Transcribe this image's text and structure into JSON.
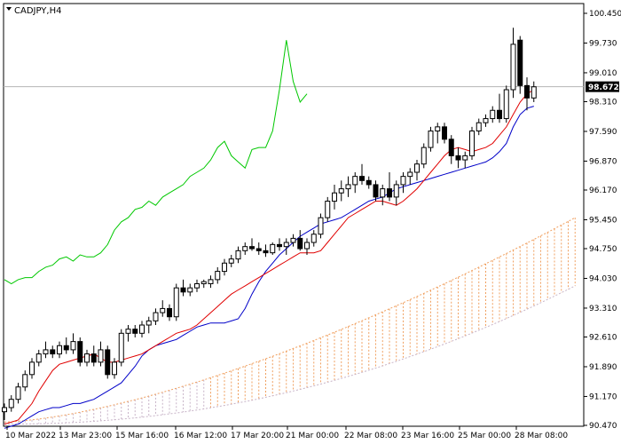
{
  "chart_data": {
    "type": "candlestick",
    "symbol_label": "CADJPY,H4",
    "timeframe": "H4",
    "ylim": [
      90.47,
      100.6
    ],
    "y_ticks": [
      "100.450",
      "99.730",
      "99.010",
      "98.310",
      "97.590",
      "96.870",
      "96.170",
      "95.450",
      "94.750",
      "94.030",
      "93.310",
      "92.610",
      "91.890",
      "91.170",
      "90.470"
    ],
    "current_price": "98.672",
    "x_ticks": [
      "10 Mar 2022",
      "13 Mar 23:00",
      "15 Mar 16:00",
      "16 Mar 12:00",
      "17 Mar 20:00",
      "21 Mar 00:00",
      "22 Mar 08:00",
      "23 Mar 16:00",
      "25 Mar 00:00",
      "28 Mar 08:00"
    ],
    "grid": false,
    "colors": {
      "candle_bull": "#ffffff",
      "candle_bear": "#000000",
      "candle_outline": "#000000",
      "fast_ma": "#e00000",
      "slow_ma": "#0000c8",
      "chikou": "#00c800",
      "cloud": "#f0a060",
      "cloud_alt": "#c8b4c8",
      "price_line": "#b4b4b4",
      "price_tag_bg": "#000000"
    },
    "candles": [
      [
        90.8,
        91.0,
        90.6,
        90.9
      ],
      [
        90.9,
        91.2,
        90.8,
        91.1
      ],
      [
        91.1,
        91.5,
        91.0,
        91.4
      ],
      [
        91.4,
        91.8,
        91.3,
        91.7
      ],
      [
        91.7,
        92.1,
        91.6,
        92.0
      ],
      [
        92.0,
        92.3,
        91.9,
        92.2
      ],
      [
        92.2,
        92.5,
        92.1,
        92.3
      ],
      [
        92.3,
        92.4,
        92.1,
        92.2
      ],
      [
        92.2,
        92.5,
        92.1,
        92.4
      ],
      [
        92.4,
        92.6,
        92.2,
        92.3
      ],
      [
        92.3,
        92.7,
        92.2,
        92.5
      ],
      [
        92.5,
        92.6,
        91.9,
        92.0
      ],
      [
        92.0,
        92.3,
        91.9,
        92.2
      ],
      [
        92.2,
        92.4,
        91.9,
        92.0
      ],
      [
        92.0,
        92.5,
        91.9,
        92.3
      ],
      [
        92.3,
        92.4,
        91.6,
        91.7
      ],
      [
        91.7,
        92.1,
        91.6,
        92.0
      ],
      [
        92.0,
        92.8,
        91.9,
        92.7
      ],
      [
        92.7,
        92.9,
        92.5,
        92.8
      ],
      [
        92.8,
        92.9,
        92.6,
        92.7
      ],
      [
        92.7,
        93.0,
        92.6,
        92.9
      ],
      [
        92.9,
        93.1,
        92.7,
        93.0
      ],
      [
        93.0,
        93.3,
        92.9,
        93.2
      ],
      [
        93.2,
        93.5,
        93.1,
        93.3
      ],
      [
        93.3,
        93.4,
        93.0,
        93.1
      ],
      [
        93.1,
        93.9,
        93.0,
        93.8
      ],
      [
        93.8,
        94.0,
        93.6,
        93.7
      ],
      [
        93.7,
        93.9,
        93.6,
        93.8
      ],
      [
        93.8,
        94.0,
        93.7,
        93.9
      ],
      [
        93.9,
        94.0,
        93.8,
        93.95
      ],
      [
        93.9,
        94.1,
        93.8,
        94.0
      ],
      [
        94.0,
        94.3,
        93.9,
        94.2
      ],
      [
        94.2,
        94.5,
        94.1,
        94.4
      ],
      [
        94.4,
        94.6,
        94.3,
        94.5
      ],
      [
        94.5,
        94.8,
        94.4,
        94.7
      ],
      [
        94.7,
        94.9,
        94.6,
        94.8
      ],
      [
        94.8,
        95.0,
        94.7,
        94.75
      ],
      [
        94.75,
        94.9,
        94.6,
        94.7
      ],
      [
        94.7,
        94.85,
        94.55,
        94.65
      ],
      [
        94.65,
        94.9,
        94.6,
        94.85
      ],
      [
        94.85,
        95.0,
        94.7,
        94.8
      ],
      [
        94.8,
        95.0,
        94.6,
        94.9
      ],
      [
        94.9,
        95.1,
        94.8,
        95.0
      ],
      [
        95.0,
        95.2,
        94.7,
        94.75
      ],
      [
        94.75,
        95.0,
        94.6,
        94.9
      ],
      [
        94.9,
        95.2,
        94.8,
        95.1
      ],
      [
        95.1,
        95.6,
        95.0,
        95.5
      ],
      [
        95.5,
        96.0,
        95.4,
        95.9
      ],
      [
        95.9,
        96.3,
        95.7,
        96.1
      ],
      [
        96.1,
        96.4,
        95.9,
        96.2
      ],
      [
        96.2,
        96.5,
        96.0,
        96.3
      ],
      [
        96.3,
        96.6,
        96.1,
        96.5
      ],
      [
        96.5,
        96.8,
        96.3,
        96.4
      ],
      [
        96.4,
        96.5,
        96.2,
        96.3
      ],
      [
        96.3,
        96.4,
        95.9,
        96.0
      ],
      [
        96.0,
        96.3,
        95.8,
        96.2
      ],
      [
        96.2,
        96.6,
        95.9,
        96.0
      ],
      [
        96.0,
        96.4,
        95.8,
        96.3
      ],
      [
        96.3,
        96.6,
        96.1,
        96.5
      ],
      [
        96.5,
        96.7,
        96.3,
        96.6
      ],
      [
        96.6,
        96.9,
        96.4,
        96.8
      ],
      [
        96.8,
        97.3,
        96.7,
        97.2
      ],
      [
        97.2,
        97.7,
        97.1,
        97.6
      ],
      [
        97.6,
        97.8,
        97.3,
        97.7
      ],
      [
        97.7,
        97.8,
        97.3,
        97.4
      ],
      [
        97.4,
        97.5,
        96.8,
        97.0
      ],
      [
        97.0,
        97.2,
        96.7,
        96.9
      ],
      [
        96.9,
        97.1,
        96.7,
        97.0
      ],
      [
        97.0,
        97.7,
        96.9,
        97.6
      ],
      [
        97.6,
        97.9,
        97.5,
        97.8
      ],
      [
        97.8,
        98.0,
        97.7,
        97.9
      ],
      [
        97.9,
        98.2,
        97.8,
        98.1
      ],
      [
        98.1,
        98.5,
        97.8,
        97.9
      ],
      [
        97.9,
        98.7,
        97.8,
        98.6
      ],
      [
        98.6,
        100.1,
        98.4,
        99.7
      ],
      [
        99.8,
        99.9,
        98.5,
        98.7
      ],
      [
        98.7,
        98.9,
        98.1,
        98.4
      ],
      [
        98.4,
        98.8,
        98.3,
        98.67
      ]
    ],
    "series": [
      {
        "values": [
          90.5,
          90.55,
          90.6,
          90.8,
          91.0,
          91.3,
          91.55,
          91.8,
          91.95,
          92.0,
          92.05,
          92.1,
          92.15,
          92.2,
          92.1,
          92.0,
          92.0,
          92.05,
          92.1,
          92.15,
          92.2,
          92.3,
          92.4,
          92.5,
          92.6,
          92.7,
          92.75,
          92.8,
          92.9,
          93.05,
          93.2,
          93.35,
          93.5,
          93.65,
          93.75,
          93.85,
          93.95,
          94.05,
          94.15,
          94.25,
          94.35,
          94.45,
          94.55,
          94.65,
          94.65,
          94.65,
          94.7,
          94.9,
          95.1,
          95.3,
          95.5,
          95.6,
          95.7,
          95.8,
          95.9,
          95.9,
          95.85,
          95.8,
          95.9,
          96.05,
          96.2,
          96.4,
          96.6,
          96.8,
          97.0,
          97.15,
          97.2,
          97.15,
          97.1,
          97.15,
          97.2,
          97.3,
          97.5,
          97.7,
          98.0,
          98.3,
          98.5,
          98.6
        ]
      },
      {
        "values": [
          90.4,
          90.45,
          90.5,
          90.6,
          90.7,
          90.8,
          90.85,
          90.9,
          90.9,
          90.95,
          91.0,
          91.0,
          91.05,
          91.1,
          91.2,
          91.3,
          91.4,
          91.5,
          91.7,
          91.9,
          92.15,
          92.3,
          92.4,
          92.45,
          92.5,
          92.55,
          92.65,
          92.75,
          92.85,
          92.9,
          92.95,
          92.95,
          92.95,
          93.0,
          93.05,
          93.3,
          93.65,
          93.95,
          94.2,
          94.4,
          94.6,
          94.75,
          94.9,
          95.05,
          95.15,
          95.25,
          95.35,
          95.4,
          95.45,
          95.5,
          95.6,
          95.7,
          95.8,
          95.9,
          95.95,
          96.0,
          96.1,
          96.2,
          96.25,
          96.3,
          96.35,
          96.4,
          96.45,
          96.5,
          96.55,
          96.6,
          96.65,
          96.7,
          96.75,
          96.8,
          96.85,
          96.95,
          97.1,
          97.3,
          97.7,
          98.0,
          98.15,
          98.2
        ]
      },
      {
        "values": [
          94.0,
          93.9,
          94.0,
          94.05,
          94.05,
          94.2,
          94.3,
          94.35,
          94.5,
          94.55,
          94.45,
          94.6,
          94.55,
          94.55,
          94.65,
          94.85,
          95.2,
          95.4,
          95.5,
          95.7,
          95.75,
          95.9,
          95.8,
          96.0,
          96.1,
          96.2,
          96.3,
          96.5,
          96.6,
          96.7,
          96.9,
          97.2,
          97.35,
          97.0,
          96.85,
          96.7,
          97.15,
          97.2,
          97.2,
          97.6,
          98.6,
          99.8,
          98.8,
          98.3,
          98.5
        ]
      }
    ]
  }
}
